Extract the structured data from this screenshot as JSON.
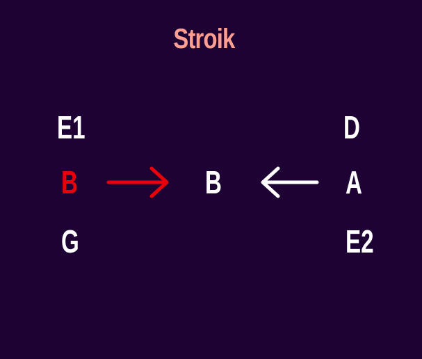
{
  "title": "Stroik",
  "colors": {
    "background": "#1d0233",
    "title": "#ff9f92",
    "note": "#ffffff",
    "active": "#e8000b"
  },
  "left_column": [
    {
      "label": "E1",
      "active": false
    },
    {
      "label": "B",
      "active": true
    },
    {
      "label": "G",
      "active": false
    }
  ],
  "center": {
    "label": "B"
  },
  "right_column": [
    {
      "label": "D",
      "active": false
    },
    {
      "label": "A",
      "active": false
    },
    {
      "label": "E2",
      "active": false
    }
  ],
  "arrows": [
    {
      "direction": "right",
      "color": "#e8000b"
    },
    {
      "direction": "left",
      "color": "#ffffff"
    }
  ]
}
